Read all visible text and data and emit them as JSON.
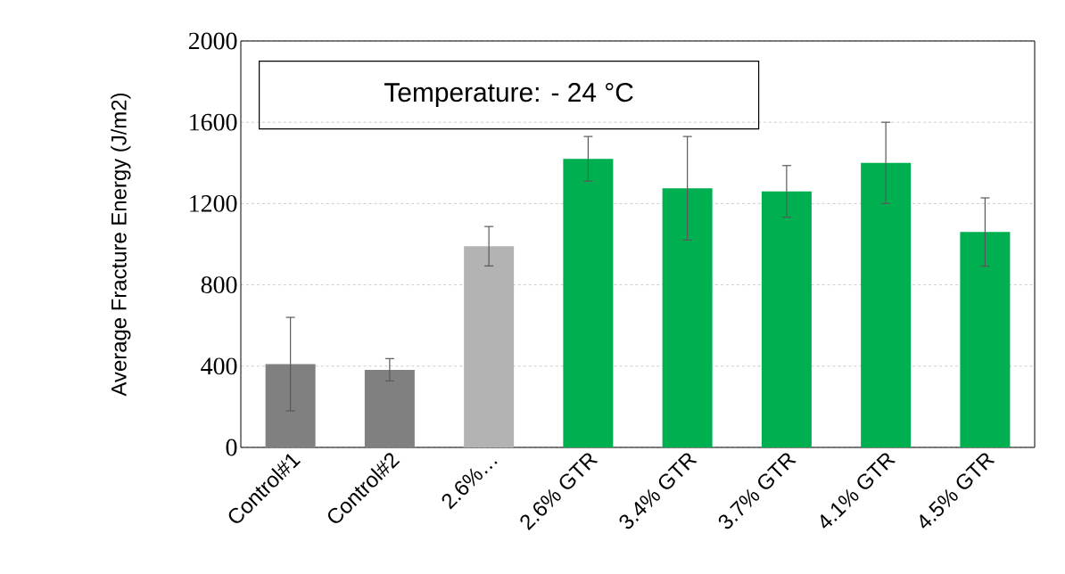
{
  "chart_data": {
    "type": "bar",
    "ylabel": "Average Fracture Energy (J/m2)",
    "annotations": [
      "Temperature: - 24 °C"
    ],
    "categories": [
      "Control#1",
      "Control#2",
      "2.6%…",
      "2.6% GTR",
      "3.4% GTR",
      "3.7% GTR",
      "4.1% GTR",
      "4.5% GTR"
    ],
    "values": [
      410,
      382,
      990,
      1420,
      1275,
      1260,
      1400,
      1060
    ],
    "errors": [
      230,
      55,
      97,
      110,
      255,
      127,
      200,
      168
    ],
    "colors": [
      "#808080",
      "#808080",
      "#b3b3b3",
      "#00b050",
      "#00b050",
      "#00b050",
      "#00b050",
      "#00b050"
    ],
    "ylim": [
      0,
      2000
    ],
    "yticks": [
      0,
      400,
      800,
      1200,
      1600,
      2000
    ],
    "grid": "y"
  }
}
